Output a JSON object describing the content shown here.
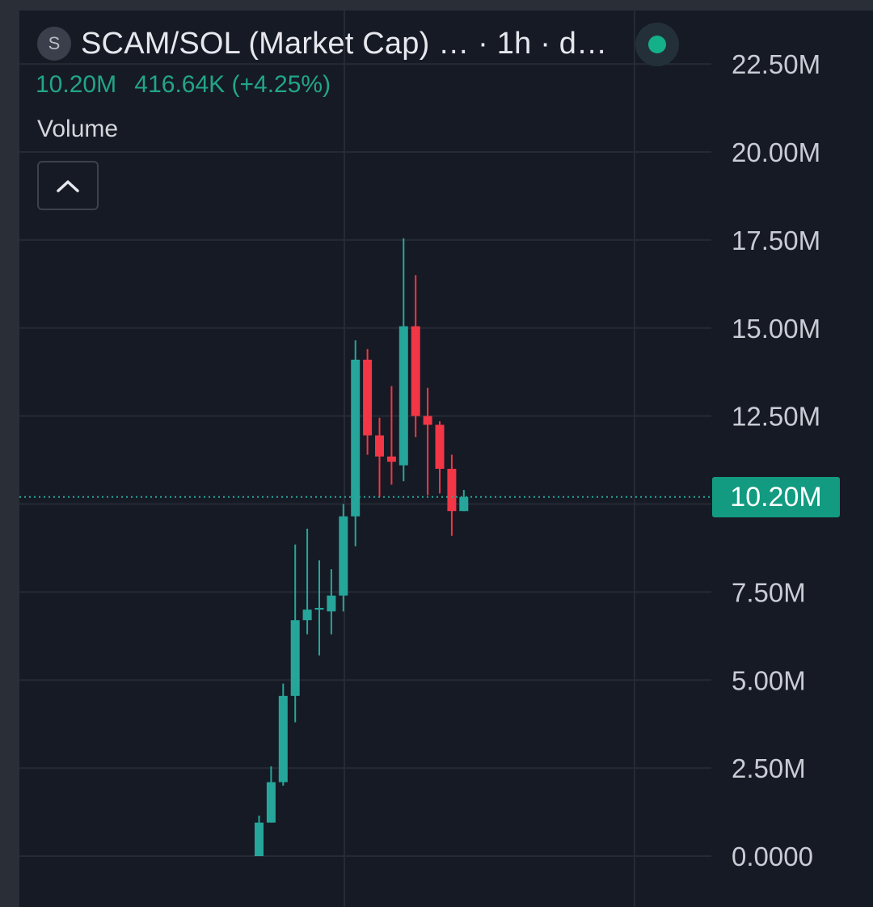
{
  "header": {
    "symbol_badge": "S",
    "title": "SCAM/SOL (Market Cap) … · 1h · d…",
    "last_value": "10.20M",
    "change": "416.64K (+4.25%)",
    "volume_label": "Volume"
  },
  "price_tag": "10.20M",
  "colors": {
    "up": "#26a69a",
    "down": "#f23645",
    "grid": "#262a35",
    "axis_text": "#c9ccd3",
    "price_line": "#26a69a"
  },
  "chart_data": {
    "type": "candlestick",
    "ylim": [
      0,
      23400000
    ],
    "y_ticks": [
      0,
      2500000,
      5000000,
      7500000,
      10000000,
      12500000,
      15000000,
      17500000,
      20000000,
      22500000
    ],
    "y_tick_labels": [
      "0.0000",
      "2.50M",
      "5.00M",
      "7.50M",
      "10.00M",
      "12.50M",
      "15.00M",
      "17.50M",
      "20.00M",
      "22.50M"
    ],
    "last_price": 10200000,
    "candles": [
      {
        "o": 0,
        "h": 1150000,
        "l": 0,
        "c": 950000
      },
      {
        "o": 950000,
        "h": 2550000,
        "l": 950000,
        "c": 2100000
      },
      {
        "o": 2100000,
        "h": 4900000,
        "l": 2000000,
        "c": 4550000
      },
      {
        "o": 4550000,
        "h": 8850000,
        "l": 3800000,
        "c": 6700000
      },
      {
        "o": 6700000,
        "h": 9300000,
        "l": 6300000,
        "c": 7000000
      },
      {
        "o": 7000000,
        "h": 8400000,
        "l": 5700000,
        "c": 7050000
      },
      {
        "o": 6950000,
        "h": 8150000,
        "l": 6300000,
        "c": 7400000
      },
      {
        "o": 7400000,
        "h": 10000000,
        "l": 6950000,
        "c": 9650000
      },
      {
        "o": 9650000,
        "h": 14650000,
        "l": 8800000,
        "c": 14100000
      },
      {
        "o": 14100000,
        "h": 14400000,
        "l": 11400000,
        "c": 11950000
      },
      {
        "o": 11950000,
        "h": 12450000,
        "l": 10200000,
        "c": 11350000
      },
      {
        "o": 11350000,
        "h": 13350000,
        "l": 10550000,
        "c": 11200000
      },
      {
        "o": 11100000,
        "h": 17550000,
        "l": 10650000,
        "c": 15050000
      },
      {
        "o": 15050000,
        "h": 16500000,
        "l": 11900000,
        "c": 12500000
      },
      {
        "o": 12500000,
        "h": 13300000,
        "l": 10250000,
        "c": 12250000
      },
      {
        "o": 12250000,
        "h": 12350000,
        "l": 10300000,
        "c": 11000000
      },
      {
        "o": 11000000,
        "h": 11400000,
        "l": 9100000,
        "c": 9800000
      },
      {
        "o": 9800000,
        "h": 10400000,
        "l": 9800000,
        "c": 10200000
      }
    ]
  }
}
